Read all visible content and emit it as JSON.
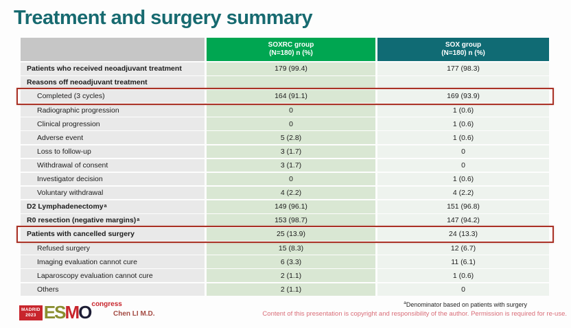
{
  "title": "Treatment and surgery summary",
  "table": {
    "columns": [
      {
        "line1": "SOXRC group",
        "line2": "(N=180)  n (%)",
        "color": "#00a651"
      },
      {
        "line1": "SOX group",
        "line2": "(N=180)  n (%)",
        "color": "#106b74"
      }
    ],
    "rows": [
      {
        "label": "Patients who received neoadjuvant treatment",
        "sup": "",
        "soxrc": "179 (99.4)",
        "sox": "177 (98.3)",
        "bold": true,
        "indent": false,
        "highlight": false
      },
      {
        "label": "Reasons off neoadjuvant treatment",
        "sup": "",
        "soxrc": "",
        "sox": "",
        "bold": true,
        "indent": false,
        "highlight": false
      },
      {
        "label": "Completed (3 cycles)",
        "sup": "",
        "soxrc": "164 (91.1)",
        "sox": "169 (93.9)",
        "bold": false,
        "indent": true,
        "highlight": true
      },
      {
        "label": "Radiographic progression",
        "sup": "",
        "soxrc": "0",
        "sox": "1 (0.6)",
        "bold": false,
        "indent": true,
        "highlight": false
      },
      {
        "label": "Clinical progression",
        "sup": "",
        "soxrc": "0",
        "sox": "1 (0.6)",
        "bold": false,
        "indent": true,
        "highlight": false
      },
      {
        "label": "Adverse event",
        "sup": "",
        "soxrc": "5 (2.8)",
        "sox": "1 (0.6)",
        "bold": false,
        "indent": true,
        "highlight": false
      },
      {
        "label": "Loss to follow-up",
        "sup": "",
        "soxrc": "3 (1.7)",
        "sox": "0",
        "bold": false,
        "indent": true,
        "highlight": false
      },
      {
        "label": "Withdrawal of consent",
        "sup": "",
        "soxrc": "3 (1.7)",
        "sox": "0",
        "bold": false,
        "indent": true,
        "highlight": false
      },
      {
        "label": "Investigator decision",
        "sup": "",
        "soxrc": "0",
        "sox": "1 (0.6)",
        "bold": false,
        "indent": true,
        "highlight": false
      },
      {
        "label": "Voluntary withdrawal",
        "sup": "",
        "soxrc": "4 (2.2)",
        "sox": "4 (2.2)",
        "bold": false,
        "indent": true,
        "highlight": false
      },
      {
        "label": "D2 Lymphadenectomy",
        "sup": "a",
        "soxrc": "149 (96.1)",
        "sox": "151 (96.8)",
        "bold": true,
        "indent": false,
        "highlight": false
      },
      {
        "label": "R0 resection (negative margins)",
        "sup": "a",
        "soxrc": "153 (98.7)",
        "sox": "147 (94.2)",
        "bold": true,
        "indent": false,
        "highlight": false
      },
      {
        "label": "Patients with cancelled surgery",
        "sup": "",
        "soxrc": "25 (13.9)",
        "sox": "24 (13.3)",
        "bold": true,
        "indent": false,
        "highlight": true
      },
      {
        "label": "Refused surgery",
        "sup": "",
        "soxrc": "15 (8.3)",
        "sox": "12 (6.7)",
        "bold": false,
        "indent": true,
        "highlight": false
      },
      {
        "label": "Imaging evaluation cannot cure",
        "sup": "",
        "soxrc": "6 (3.3)",
        "sox": "11 (6.1)",
        "bold": false,
        "indent": true,
        "highlight": false
      },
      {
        "label": "Laparoscopy evaluation cannot cure",
        "sup": "",
        "soxrc": "2 (1.1)",
        "sox": "1 (0.6)",
        "bold": false,
        "indent": true,
        "highlight": false
      },
      {
        "label": "Others",
        "sup": "",
        "soxrc": "2 (1.1)",
        "sox": "0",
        "bold": false,
        "indent": true,
        "highlight": false
      }
    ]
  },
  "footer": {
    "footnote_sup": "a",
    "footnote": "Denominator based on patients with surgery",
    "presenter": "Chen LI M.D.",
    "copyright": "Content of this presentation is copyright and responsibility of the author. Permission is required for re-use.",
    "logo": {
      "city": "MADRID",
      "year": "2023",
      "suffix": "congress",
      "letters": [
        {
          "ch": "E",
          "color": "#8a8e2f"
        },
        {
          "ch": "S",
          "color": "#8a8e2f"
        },
        {
          "ch": "M",
          "color": "#c8252c"
        },
        {
          "ch": "O",
          "color": "#1d1d35"
        }
      ]
    }
  },
  "colors": {
    "title": "#176a70",
    "soxrc_header": "#00a651",
    "sox_header": "#106b74",
    "label_cell": "#e9e9e9",
    "soxrc_cell": "#d9e7d3",
    "sox_cell": "#eef3ee",
    "highlight_border": "#a93226",
    "copyright_text": "#d96c77",
    "presenter_text": "#a34a42"
  }
}
